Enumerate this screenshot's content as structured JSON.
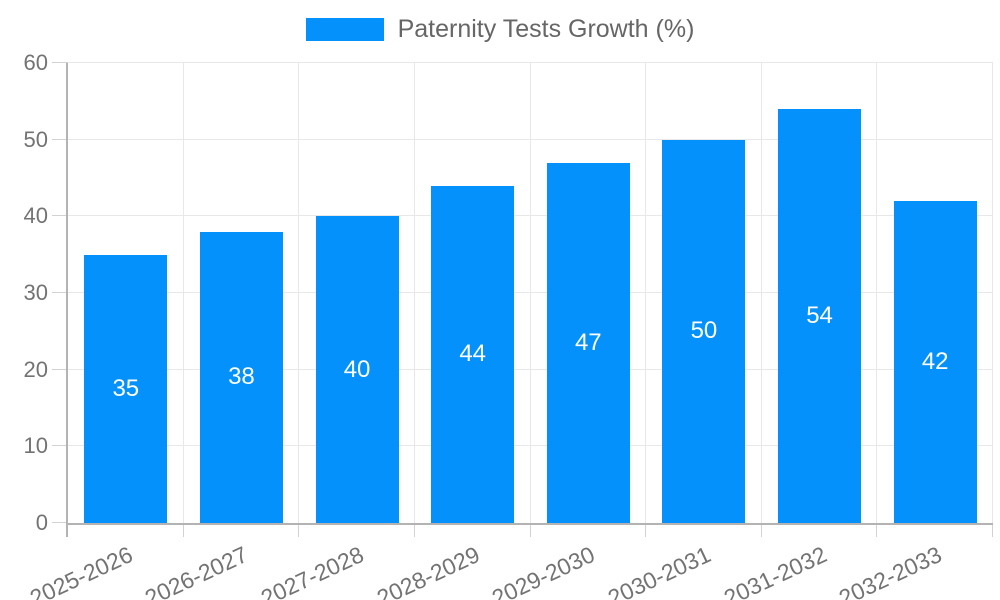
{
  "legend": {
    "label": "Paternity Tests Growth (%)"
  },
  "colors": {
    "bar": "#0591fb",
    "axis": "#b3b3b3",
    "grid": "#e8e8e8",
    "tick": "#d2d2d2",
    "tick_text": "#737373",
    "legend_text": "#666666",
    "value_label": "#ffffff"
  },
  "chart_data": {
    "type": "bar",
    "title": "Paternity Tests Growth (%)",
    "series_name": "Paternity Tests Growth (%)",
    "categories": [
      "2025-2026",
      "2026-2027",
      "2027-2028",
      "2028-2029",
      "2029-2030",
      "2030-2031",
      "2031-2032",
      "2032-2033"
    ],
    "values": [
      35,
      38,
      40,
      44,
      47,
      50,
      54,
      42
    ],
    "xlabel": "",
    "ylabel": "",
    "ylim": [
      0,
      60
    ],
    "ytick_step": 10,
    "yticks": [
      0,
      10,
      20,
      30,
      40,
      50,
      60
    ],
    "grid": true,
    "legend_position": "top-center",
    "value_labels_position": "inside-center",
    "bar_color": "#0591fb"
  }
}
